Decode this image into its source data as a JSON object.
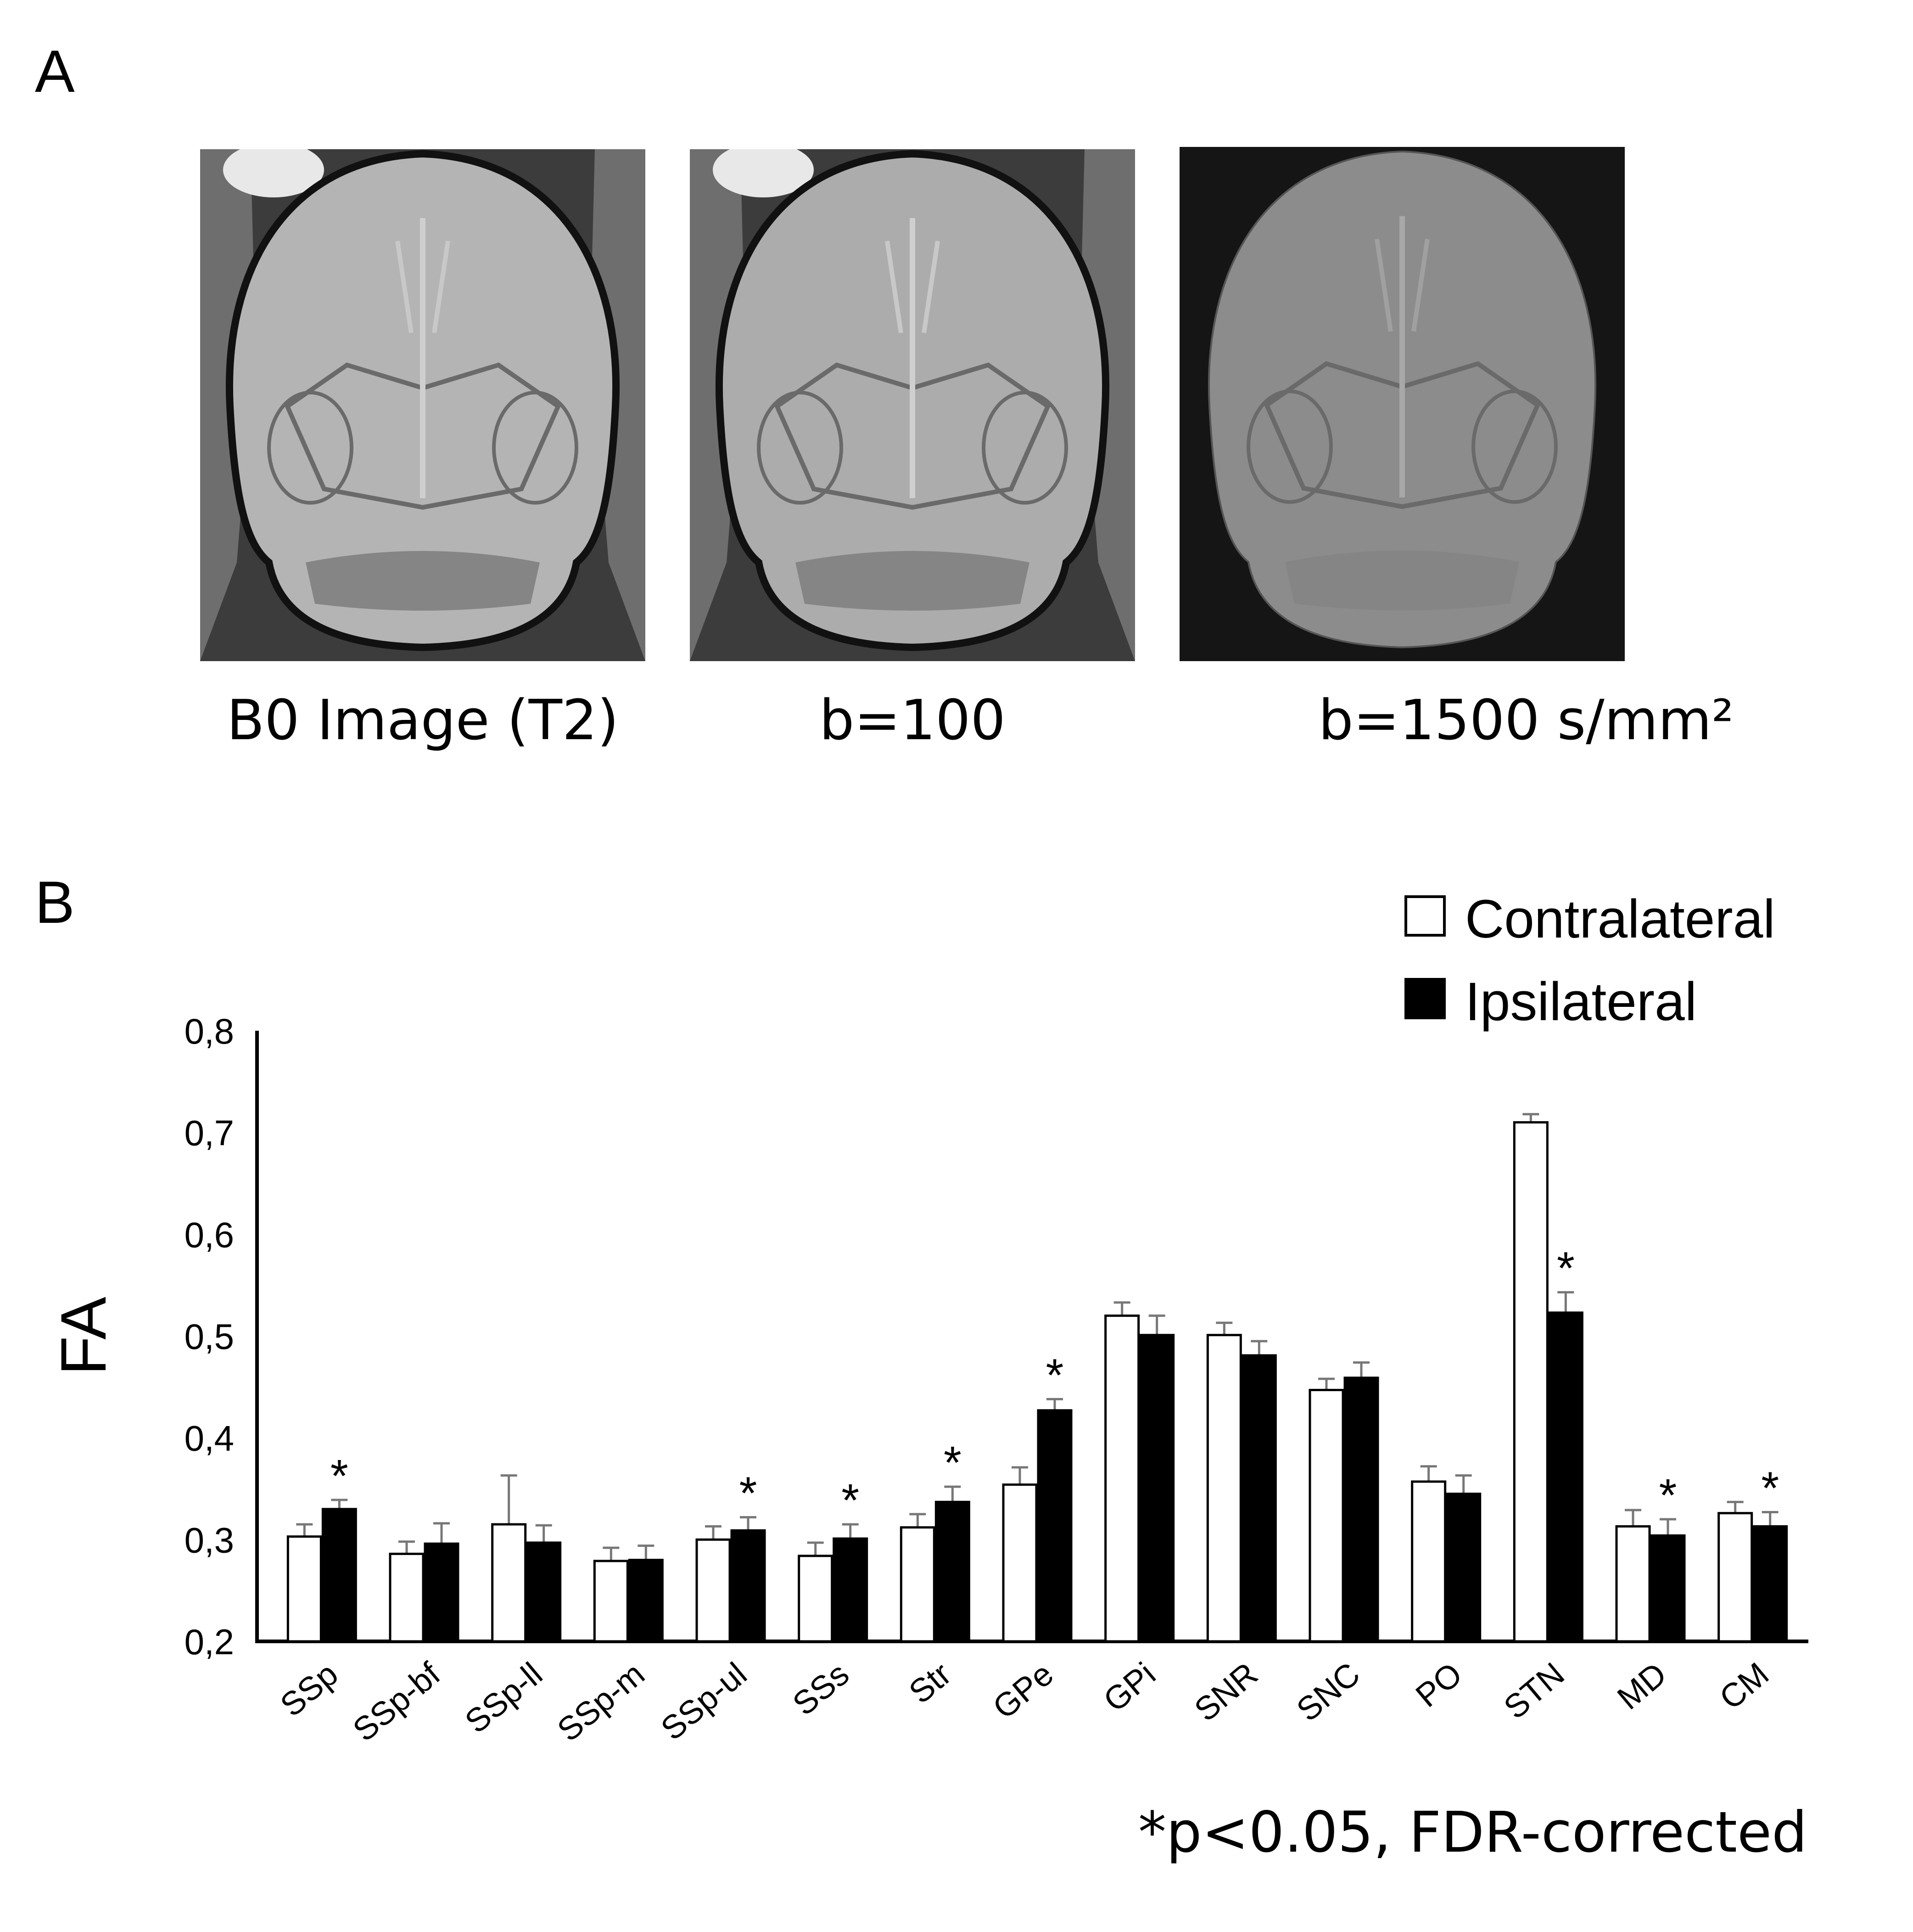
{
  "panels": {
    "a_label": "A",
    "b_label": "B"
  },
  "images": [
    {
      "caption": "B0 Image (T2)",
      "tone": "#b4b4b4"
    },
    {
      "caption": "b=100",
      "tone": "#acacac"
    },
    {
      "caption": "b=1500 s/mm²",
      "tone": "#8c8c8c"
    }
  ],
  "footnote": "*p<0.05, FDR-corrected",
  "chart_data": {
    "type": "bar",
    "ylabel": "FA",
    "ylim": [
      0.2,
      0.8
    ],
    "yticks": [
      "0,2",
      "0,3",
      "0,4",
      "0,5",
      "0,6",
      "0,7",
      "0,8"
    ],
    "ytick_values": [
      0.2,
      0.3,
      0.4,
      0.5,
      0.6,
      0.7,
      0.8
    ],
    "categories": [
      "SSp",
      "SSp-bf",
      "SSp-ll",
      "SSp-m",
      "SSp-ul",
      "SSs",
      "Str",
      "GPe",
      "GPi",
      "SNR",
      "SNC",
      "PO",
      "STN",
      "MD",
      "CM"
    ],
    "legend_position": "top-right",
    "series": [
      {
        "name": "Contralateral",
        "fill": "#ffffff",
        "values": [
          0.303,
          0.286,
          0.315,
          0.279,
          0.3,
          0.284,
          0.312,
          0.354,
          0.52,
          0.501,
          0.447,
          0.357,
          0.71,
          0.313,
          0.326
        ],
        "errors": [
          0.012,
          0.012,
          0.048,
          0.013,
          0.013,
          0.013,
          0.013,
          0.017,
          0.013,
          0.012,
          0.011,
          0.015,
          0.008,
          0.016,
          0.011
        ]
      },
      {
        "name": "Ipsilateral",
        "fill": "#000000",
        "values": [
          0.33,
          0.296,
          0.297,
          0.28,
          0.309,
          0.301,
          0.337,
          0.427,
          0.501,
          0.481,
          0.459,
          0.345,
          0.523,
          0.304,
          0.313
        ],
        "errors": [
          0.009,
          0.02,
          0.017,
          0.014,
          0.013,
          0.014,
          0.015,
          0.011,
          0.019,
          0.014,
          0.015,
          0.018,
          0.02,
          0.016,
          0.014
        ]
      }
    ],
    "significant": [
      true,
      false,
      false,
      false,
      true,
      true,
      true,
      true,
      false,
      false,
      false,
      false,
      true,
      true,
      true
    ],
    "significance_marker": "*"
  }
}
